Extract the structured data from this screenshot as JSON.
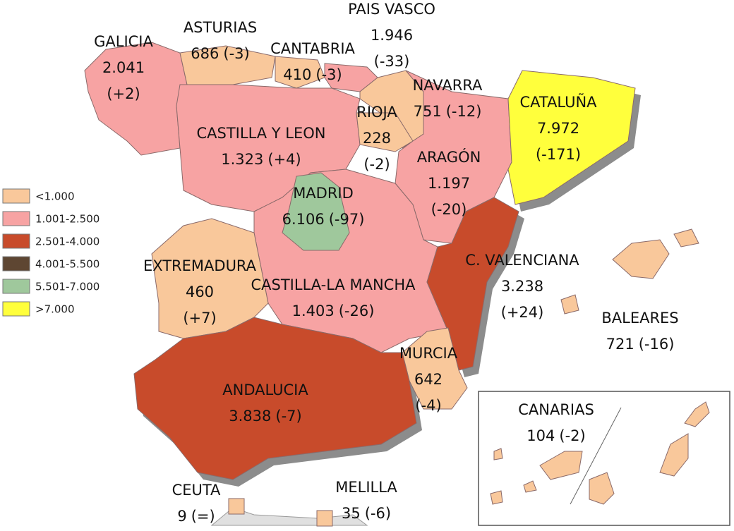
{
  "regions": [
    {
      "name": "GALICIA",
      "total": "2.041",
      "change": "(+2)"
    },
    {
      "name": "ASTURIAS",
      "total": "686",
      "change": "(-3)"
    },
    {
      "name": "CANTABRIA",
      "total": "410",
      "change": "(-3)"
    },
    {
      "name": "PAIS VASCO",
      "total": "1.946",
      "change": "(-33)"
    },
    {
      "name": "NAVARRA",
      "total": "751",
      "change": "(-12)"
    },
    {
      "name": "RIOJA",
      "total": "228",
      "change": "(-2)"
    },
    {
      "name": "CASTILLA Y LEON",
      "total": "1.323",
      "change": "(+4)"
    },
    {
      "name": "ARAGÓN",
      "total": "1.197",
      "change": "(-20)"
    },
    {
      "name": "CATALUÑA",
      "total": "7.972",
      "change": "(-171)"
    },
    {
      "name": "MADRID",
      "total": "6.106",
      "change": "(-97)"
    },
    {
      "name": "EXTREMADURA",
      "total": "460",
      "change": "(+7)"
    },
    {
      "name": "CASTILLA-LA MANCHA",
      "total": "1.403",
      "change": "(-26)"
    },
    {
      "name": "C. VALENCIANA",
      "total": "3.238",
      "change": "(+24)"
    },
    {
      "name": "BALEARES",
      "total": "721",
      "change": "(-16)"
    },
    {
      "name": "MURCIA",
      "total": "642",
      "change": "(-4)"
    },
    {
      "name": "ANDALUCIA",
      "total": "3.838",
      "change": "(-7)"
    },
    {
      "name": "CANARIAS",
      "total": "104",
      "change": "(-2)"
    },
    {
      "name": "CEUTA",
      "total": "9",
      "change": "(=)"
    },
    {
      "name": "MELILLA",
      "total": "35",
      "change": "(-6)"
    }
  ],
  "legend": [
    {
      "label": "<1.000",
      "color": "#f9c89b"
    },
    {
      "label": "1.001-2.500",
      "color": "#f7a3a3"
    },
    {
      "label": "2.501-4.000",
      "color": "#c84b2b"
    },
    {
      "label": "4.001-5.500",
      "color": "#5e4632"
    },
    {
      "label": "5.501-7.000",
      "color": "#9fc89c"
    },
    {
      "label": ">7.000",
      "color": "#ffff3c"
    }
  ]
}
